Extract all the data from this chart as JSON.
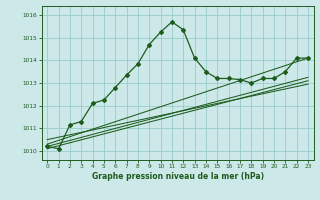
{
  "xlabel": "Graphe pression niveau de la mer (hPa)",
  "xlim": [
    -0.5,
    23.5
  ],
  "ylim": [
    1009.6,
    1016.4
  ],
  "yticks": [
    1010,
    1011,
    1012,
    1013,
    1014,
    1015,
    1016
  ],
  "xticks": [
    0,
    1,
    2,
    3,
    4,
    5,
    6,
    7,
    8,
    9,
    10,
    11,
    12,
    13,
    14,
    15,
    16,
    17,
    18,
    19,
    20,
    21,
    22,
    23
  ],
  "background_color": "#cce8e8",
  "grid_color": "#99cccc",
  "line_color": "#1e5c1e",
  "main_line": {
    "x": [
      0,
      1,
      2,
      3,
      4,
      5,
      6,
      7,
      8,
      9,
      10,
      11,
      12,
      13,
      14,
      15,
      16,
      17,
      18,
      19,
      20,
      21,
      22,
      23
    ],
    "y": [
      1010.2,
      1010.1,
      1011.15,
      1011.3,
      1012.1,
      1012.25,
      1012.8,
      1013.35,
      1013.85,
      1014.7,
      1015.25,
      1015.7,
      1015.35,
      1014.1,
      1013.5,
      1013.2,
      1013.2,
      1013.15,
      1013.0,
      1013.2,
      1013.2,
      1013.5,
      1014.1,
      1014.1
    ]
  },
  "trend_lines": [
    {
      "x": [
        0,
        23
      ],
      "y": [
        1010.1,
        1013.1
      ]
    },
    {
      "x": [
        0,
        23
      ],
      "y": [
        1010.2,
        1013.25
      ]
    },
    {
      "x": [
        0,
        23
      ],
      "y": [
        1010.3,
        1014.1
      ]
    },
    {
      "x": [
        0,
        23
      ],
      "y": [
        1010.5,
        1012.95
      ]
    }
  ]
}
